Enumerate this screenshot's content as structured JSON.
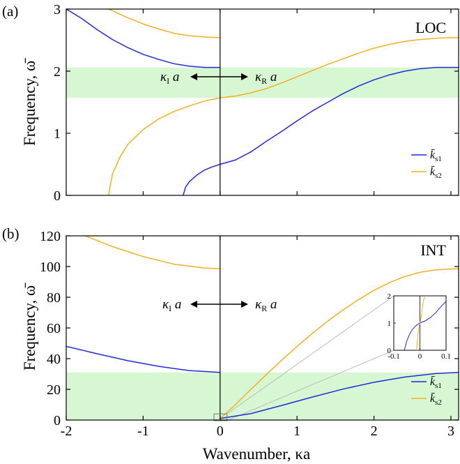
{
  "figure": {
    "xlabel": "Wavenumber, κa",
    "ylabel": "Frequency, ω̄",
    "xticks": [
      "-2",
      "-1",
      "0",
      "1",
      "2",
      "3"
    ]
  },
  "colors": {
    "ks1": "#1f2bd8",
    "ks2": "#f2b01e",
    "band": "#d6f7d2",
    "band_edge": "#b9eeb3"
  },
  "chart_data": [
    {
      "type": "line",
      "panel": "(a)",
      "tag": "LOC",
      "xlim": [
        -2,
        3.1
      ],
      "ylim": [
        0,
        3
      ],
      "yticks": [
        "0",
        "1",
        "2",
        "3"
      ],
      "band": [
        1.57,
        2.06
      ],
      "annotation": {
        "left": "κ_I a",
        "right": "κ_R a"
      },
      "legend": {
        "position": "bottom-right",
        "entries": [
          "k̄_s1",
          "k̄_s2"
        ]
      },
      "series": [
        {
          "name": "k̄_s1",
          "color": "blue",
          "x": [
            -2.0,
            -1.8,
            -1.6,
            -1.4,
            -1.2,
            -1.0,
            -0.8,
            -0.6,
            -0.4,
            -0.2,
            0.0
          ],
          "y": [
            3.0,
            2.85,
            2.67,
            2.51,
            2.38,
            2.27,
            2.19,
            2.12,
            2.08,
            2.06,
            2.06
          ]
        },
        {
          "name": "k̄_s1",
          "color": "blue",
          "x": [
            -0.48,
            -0.45,
            -0.4,
            -0.3,
            -0.2,
            -0.1,
            0.0,
            0.2,
            0.4,
            0.6,
            0.8,
            1.0,
            1.2,
            1.4,
            1.6,
            1.8,
            2.0,
            2.2,
            2.4,
            2.6,
            2.8,
            3.0,
            3.1
          ],
          "y": [
            0.0,
            0.13,
            0.22,
            0.33,
            0.41,
            0.46,
            0.5,
            0.57,
            0.7,
            0.87,
            1.03,
            1.2,
            1.36,
            1.5,
            1.64,
            1.76,
            1.86,
            1.94,
            2.0,
            2.04,
            2.06,
            2.06,
            2.06
          ]
        },
        {
          "name": "k̄_s2",
          "color": "orange",
          "x": [
            -1.45,
            -1.4,
            -1.3,
            -1.2,
            -1.0,
            -0.8,
            -0.6,
            -0.4,
            -0.2,
            0.0,
            0.2,
            0.4,
            0.6,
            0.8,
            1.0,
            1.2,
            1.4,
            1.6,
            1.8,
            2.0,
            2.2,
            2.4,
            2.6,
            2.8,
            3.0,
            3.1
          ],
          "y": [
            0.0,
            0.34,
            0.62,
            0.82,
            1.06,
            1.23,
            1.35,
            1.44,
            1.52,
            1.57,
            1.6,
            1.65,
            1.72,
            1.81,
            1.91,
            2.01,
            2.11,
            2.2,
            2.29,
            2.37,
            2.43,
            2.48,
            2.51,
            2.53,
            2.54,
            2.54
          ]
        },
        {
          "name": "k̄_s2",
          "color": "orange",
          "x": [
            -1.45,
            -1.2,
            -1.0,
            -0.8,
            -0.6,
            -0.4,
            -0.2,
            0.0
          ],
          "y": [
            3.0,
            2.86,
            2.76,
            2.68,
            2.61,
            2.57,
            2.55,
            2.54
          ]
        }
      ]
    },
    {
      "type": "line",
      "panel": "(b)",
      "tag": "INT",
      "xlim": [
        -2,
        3.1
      ],
      "ylim": [
        0,
        120
      ],
      "yticks": [
        "0",
        "20",
        "40",
        "60",
        "80",
        "100",
        "120"
      ],
      "band": [
        0,
        31
      ],
      "annotation": {
        "left": "κ_I a",
        "right": "κ_R a"
      },
      "legend": {
        "position": "bottom-right",
        "entries": [
          "k̄_s1",
          "k̄_s2"
        ]
      },
      "series": [
        {
          "name": "k̄_s1",
          "color": "blue",
          "x": [
            -2.0,
            -1.6,
            -1.2,
            -0.8,
            -0.4,
            0.0
          ],
          "y": [
            48,
            43.2,
            38.7,
            35,
            32.2,
            31
          ]
        },
        {
          "name": "k̄_s1",
          "color": "blue",
          "x": [
            0.0,
            0.4,
            0.8,
            1.2,
            1.6,
            2.0,
            2.4,
            2.8,
            3.1
          ],
          "y": [
            1,
            4.2,
            9.5,
            15,
            20.2,
            24.6,
            28,
            30.3,
            31
          ]
        },
        {
          "name": "k̄_s2",
          "color": "orange",
          "x": [
            0.0,
            0.2,
            0.4,
            0.6,
            0.8,
            1.0,
            1.2,
            1.4,
            1.6,
            1.8,
            2.0,
            2.2,
            2.4,
            2.6,
            2.8,
            3.0,
            3.1
          ],
          "y": [
            1,
            10,
            20,
            29.5,
            39,
            48,
            56.5,
            64.5,
            71.8,
            78.5,
            84.5,
            89.5,
            93.5,
            96.3,
            97.8,
            98.4,
            98.5
          ]
        },
        {
          "name": "k̄_s2",
          "color": "orange",
          "x": [
            -1.75,
            -1.4,
            -1.0,
            -0.6,
            -0.2,
            0.0
          ],
          "y": [
            120,
            113,
            106.5,
            101.5,
            99,
            98.5
          ]
        }
      ],
      "inset": {
        "xlim": [
          -0.1,
          0.1
        ],
        "ylim": [
          0,
          2
        ],
        "xticks": [
          "-0.1",
          "0",
          "0.1"
        ],
        "yticks": [
          "0",
          "1",
          "2"
        ],
        "series": [
          {
            "name": "k̄_s1",
            "color": "blue",
            "x": [
              -0.06,
              -0.05,
              -0.04,
              -0.03,
              -0.02,
              -0.01,
              0.0,
              0.02,
              0.04,
              0.06,
              0.08,
              0.1
            ],
            "y": [
              0.0,
              0.35,
              0.58,
              0.75,
              0.86,
              0.94,
              1.0,
              1.08,
              1.2,
              1.38,
              1.6,
              1.8
            ]
          },
          {
            "name": "k̄_s2",
            "color": "orange",
            "x": [
              -0.013,
              -0.01,
              -0.006,
              -0.003,
              0.0,
              0.003,
              0.006,
              0.01,
              0.014,
              0.018,
              0.02
            ],
            "y": [
              0.0,
              0.35,
              0.7,
              0.88,
              1.0,
              1.12,
              1.3,
              1.62,
              1.85,
              1.96,
              2.0
            ]
          }
        ]
      }
    }
  ]
}
